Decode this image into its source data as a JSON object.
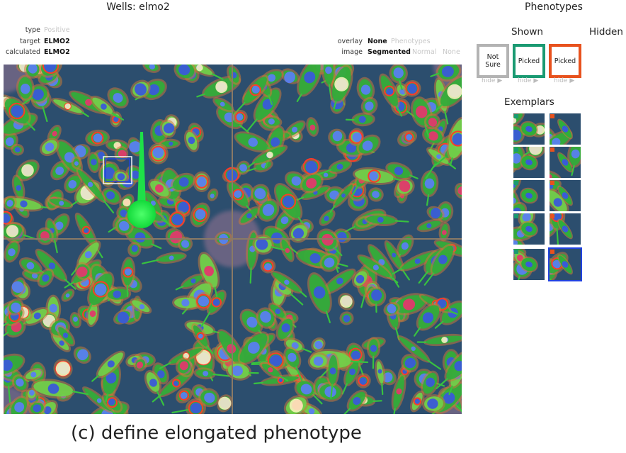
{
  "wells": {
    "title": "Wells: elmo2",
    "meta": [
      {
        "key": "type",
        "value": "Positive",
        "dim": true
      },
      {
        "key": "target",
        "value": "ELMO2",
        "dim": false
      },
      {
        "key": "calculated",
        "value": "ELMO2",
        "dim": false
      }
    ],
    "overlay": {
      "label": "overlay",
      "options": [
        "None",
        "Phenotypes"
      ],
      "selected": "None"
    },
    "image": {
      "label": "image",
      "options": [
        "Segmented",
        "Normal",
        "None"
      ],
      "selected": "Segmented"
    }
  },
  "phenotypes": {
    "title": "Phenotypes",
    "shown_label": "Shown",
    "hidden_label": "Hidden",
    "cards": [
      {
        "label": "Not Sure",
        "color": "#b3b3b3",
        "hide": "hide ▶"
      },
      {
        "label": "Picked",
        "color": "#1a9a72",
        "hide": "hide ▶"
      },
      {
        "label": "Picked",
        "color": "#e8521e",
        "hide": "hide ▶"
      }
    ],
    "exemplars_title": "Exemplars",
    "exemplar_colors": {
      "left": "#1a9a72",
      "right": "#e8521e"
    }
  },
  "colors": {
    "background": "#2c4e6e",
    "selection": "#2142e0"
  },
  "caption": "(c) define elongated phenotype"
}
